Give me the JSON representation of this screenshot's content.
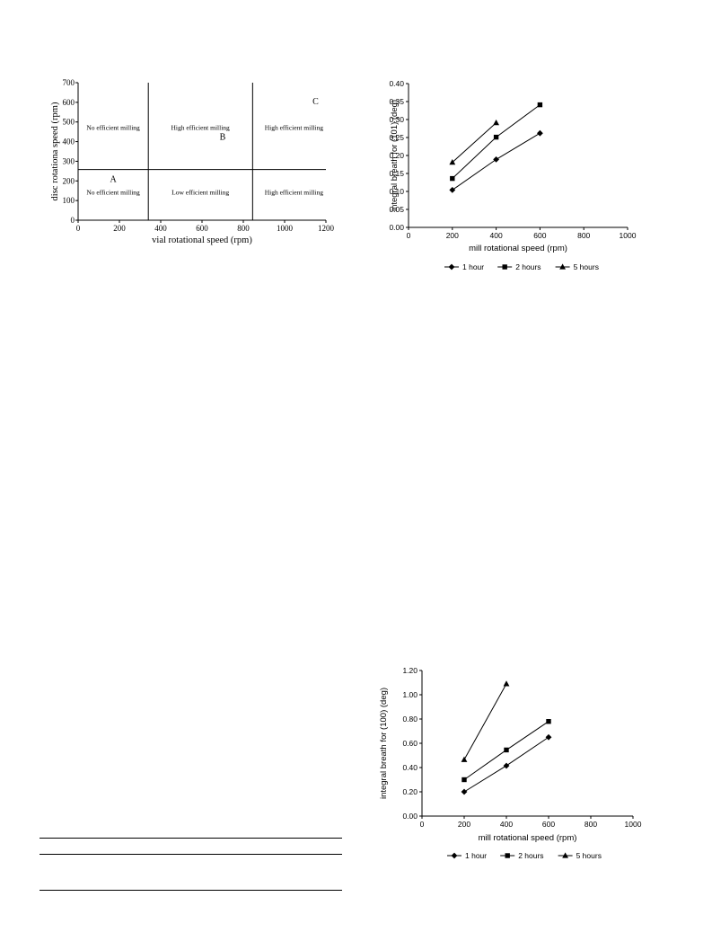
{
  "chart_data": [
    {
      "type": "region-map",
      "xlabel": "vial rotational speed (rpm)",
      "ylabel": "disc rotationa speed (rpm)",
      "xlim": [
        0,
        1200
      ],
      "ylim": [
        0,
        700
      ],
      "xticks": [
        "0",
        "200",
        "400",
        "600",
        "800",
        "1000",
        "1200"
      ],
      "yticks": [
        "0",
        "100",
        "200",
        "300",
        "400",
        "500",
        "600",
        "700"
      ],
      "vertical_boundaries": [
        340,
        845
      ],
      "horizontal_boundary": 258,
      "regions": [
        {
          "text": "No efficient milling",
          "x": 170,
          "y": 460
        },
        {
          "text": "High efficient milling",
          "x": 592,
          "y": 460
        },
        {
          "text": "High efficient milling",
          "x": 1045,
          "y": 460
        },
        {
          "text": "No efficient milling",
          "x": 170,
          "y": 130
        },
        {
          "text": "Low efficient milling",
          "x": 592,
          "y": 130
        },
        {
          "text": "High efficient milling",
          "x": 1045,
          "y": 130
        }
      ],
      "markers": [
        {
          "text": "A",
          "x": 170,
          "y": 195
        },
        {
          "text": "B",
          "x": 700,
          "y": 410
        },
        {
          "text": "C",
          "x": 1150,
          "y": 590
        }
      ]
    },
    {
      "type": "line",
      "xlabel": "mill rotational speed (rpm)",
      "ylabel": "integral breath for (101) (deg)",
      "xlim": [
        0,
        1000
      ],
      "ylim": [
        0,
        0.4
      ],
      "xticks": [
        "0",
        "200",
        "400",
        "600",
        "800",
        "1000"
      ],
      "yticks": [
        "0.00",
        "0.05",
        "0.10",
        "0.15",
        "0.20",
        "0.25",
        "0.30",
        "0.35",
        "0.40"
      ],
      "legend_position": "bottom",
      "series": [
        {
          "name": "1 hour",
          "marker": "diamond",
          "x": [
            200,
            400,
            600
          ],
          "y": [
            0.104,
            0.189,
            0.262
          ]
        },
        {
          "name": "2 hours",
          "marker": "square",
          "x": [
            200,
            400,
            600
          ],
          "y": [
            0.136,
            0.251,
            0.341
          ]
        },
        {
          "name": "5 hours",
          "marker": "triangle",
          "x": [
            200,
            400
          ],
          "y": [
            0.181,
            0.291
          ]
        }
      ]
    },
    {
      "type": "line",
      "xlabel": "mill rotational speed (rpm)",
      "ylabel": "integral breath for (100) (deg)",
      "xlim": [
        0,
        1000
      ],
      "ylim": [
        0,
        1.2
      ],
      "xticks": [
        "0",
        "200",
        "400",
        "600",
        "800",
        "1000"
      ],
      "yticks": [
        "0.00",
        "0.20",
        "0.40",
        "0.60",
        "0.80",
        "1.00",
        "1.20"
      ],
      "legend_position": "bottom",
      "series": [
        {
          "name": "1 hour",
          "marker": "diamond",
          "x": [
            200,
            400,
            600
          ],
          "y": [
            0.2,
            0.415,
            0.65
          ]
        },
        {
          "name": "2 hours",
          "marker": "square",
          "x": [
            200,
            400,
            600
          ],
          "y": [
            0.3,
            0.545,
            0.78
          ]
        },
        {
          "name": "5 hours",
          "marker": "triangle",
          "x": [
            200,
            400
          ],
          "y": [
            0.465,
            1.09
          ]
        }
      ]
    }
  ]
}
